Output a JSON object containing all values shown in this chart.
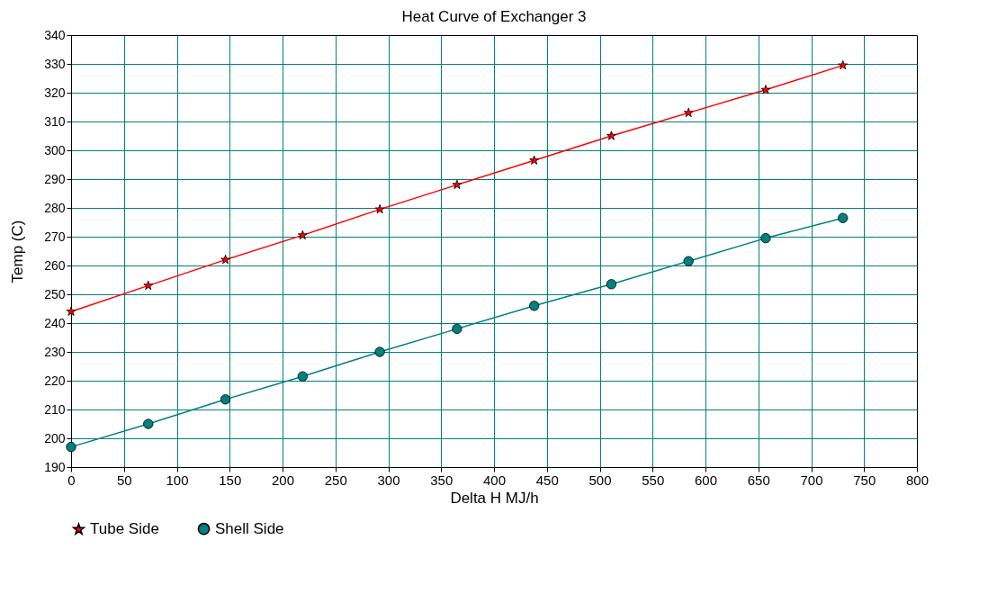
{
  "chart_data": {
    "type": "line",
    "title": "Heat Curve of Exchanger 3",
    "xlabel": "Delta H MJ/h",
    "ylabel": "Temp (C)",
    "x": [
      0,
      73,
      146,
      219,
      292,
      365,
      438,
      511,
      584,
      657,
      730
    ],
    "series": [
      {
        "name": "Tube Side",
        "color": "#ff0000",
        "marker": "star",
        "values": [
          244,
          253,
          262,
          270.5,
          279.5,
          288,
          296.5,
          305,
          313,
          321,
          329.5
        ]
      },
      {
        "name": "Shell Side",
        "color": "#008080",
        "marker": "circle",
        "values": [
          197,
          205,
          213.5,
          221.5,
          230,
          238,
          246,
          253.5,
          261.5,
          269.5,
          276.5
        ]
      }
    ],
    "xlim": [
      0,
      800
    ],
    "xticks": [
      0,
      50,
      100,
      150,
      200,
      250,
      300,
      350,
      400,
      450,
      500,
      550,
      600,
      650,
      700,
      750,
      800
    ],
    "ylim": [
      190,
      340
    ],
    "yticks": [
      190,
      200,
      210,
      220,
      230,
      240,
      250,
      260,
      270,
      280,
      290,
      300,
      310,
      320,
      330,
      340
    ],
    "grid": true,
    "legend": "bottom left",
    "line_style": "solid"
  }
}
